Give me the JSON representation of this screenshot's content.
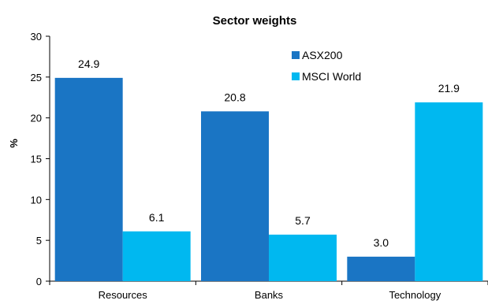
{
  "chart_data": {
    "type": "bar",
    "title": "Sector weights",
    "xlabel": "",
    "ylabel": "%",
    "ylim": [
      0,
      30
    ],
    "yticks": [
      0,
      5,
      10,
      15,
      20,
      25,
      30
    ],
    "categories": [
      "Resources",
      "Banks",
      "Technology"
    ],
    "series": [
      {
        "name": "ASX200",
        "color": "#1a75c4",
        "values": [
          24.9,
          20.8,
          3.0
        ],
        "labels": [
          "24.9",
          "20.8",
          "3.0"
        ]
      },
      {
        "name": "MSCI World",
        "color": "#00b8f0",
        "values": [
          6.1,
          5.7,
          21.9
        ],
        "labels": [
          "6.1",
          "5.7",
          "21.9"
        ]
      }
    ],
    "grid": false,
    "legend_position": "top-center"
  }
}
